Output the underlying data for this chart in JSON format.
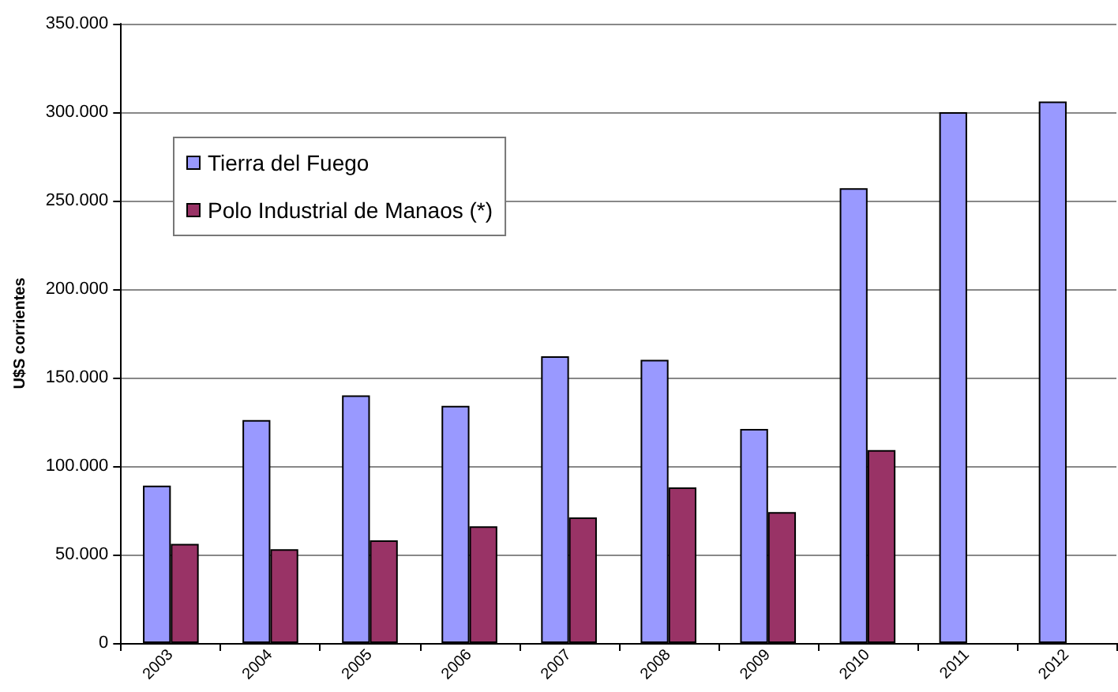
{
  "chart_data": {
    "type": "bar",
    "ylabel": "U$S corrientes",
    "categories": [
      "2003",
      "2004",
      "2005",
      "2006",
      "2007",
      "2008",
      "2009",
      "2010",
      "2011",
      "2012"
    ],
    "series": [
      {
        "name": "Tierra del Fuego",
        "color": "#9999ff",
        "values": [
          89000,
          126000,
          140000,
          134000,
          162000,
          160000,
          121000,
          257000,
          300000,
          306000
        ]
      },
      {
        "name": "Polo Industrial de Manaos (*)",
        "color": "#993366",
        "values": [
          56000,
          53000,
          58000,
          66000,
          71000,
          88000,
          74000,
          109000,
          null,
          null
        ]
      }
    ],
    "ylim": [
      0,
      350000
    ],
    "yticks": [
      0,
      {
        "value": 50000,
        "label": "50.000"
      },
      {
        "value": 100000,
        "label": "100.000"
      },
      {
        "value": 150000,
        "label": "150.000"
      },
      {
        "value": 200000,
        "label": "200.000"
      },
      {
        "value": 250000,
        "label": "250.000"
      },
      {
        "value": 300000,
        "label": "300.000"
      },
      {
        "value": 350000,
        "label": "350.000"
      }
    ],
    "grid": true,
    "legend": "top left"
  }
}
